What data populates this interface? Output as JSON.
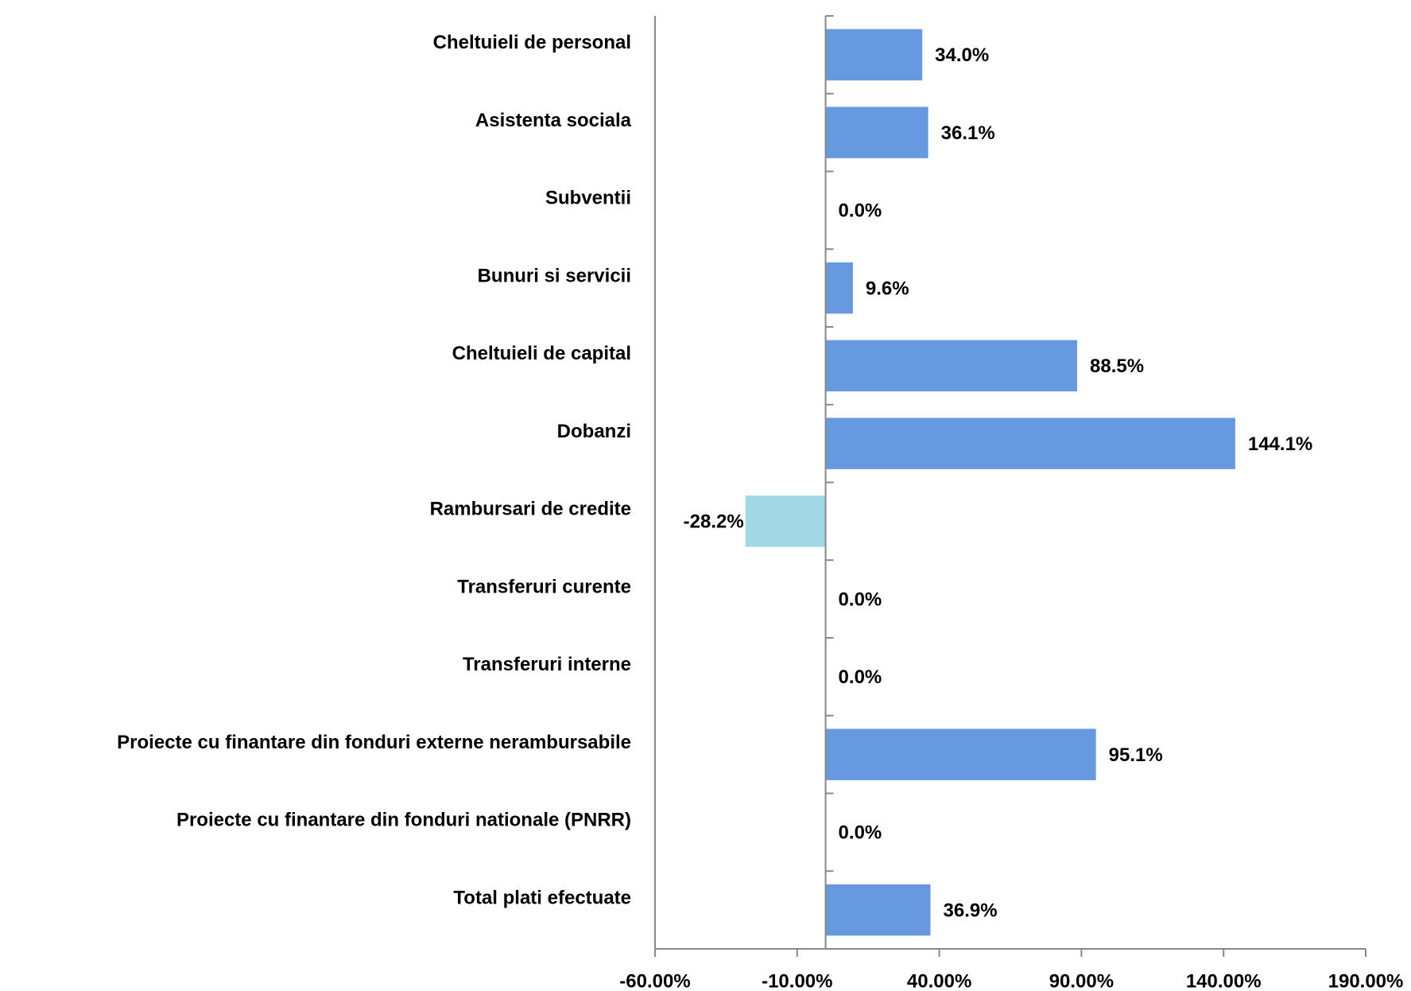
{
  "chart_data": {
    "type": "hbar",
    "categories": [
      "Cheltuieli de personal",
      "Asistenta sociala",
      "Subventii",
      "Bunuri si servicii",
      "Cheltuieli de capital",
      "Dobanzi",
      "Rambursari de credite",
      "Transferuri curente",
      "Transferuri interne",
      "Proiecte cu finantare din fonduri externe nerambursabile",
      "Proiecte cu finantare din fonduri nationale (PNRR)",
      "Total plati efectuate"
    ],
    "values": [
      34.0,
      36.1,
      0.0,
      9.6,
      88.5,
      144.1,
      -28.2,
      0.0,
      0.0,
      95.1,
      0.0,
      36.9
    ],
    "value_labels": [
      "34.0%",
      "36.1%",
      "0.0%",
      "9.6%",
      "88.5%",
      "144.1%",
      "-28.2%",
      "0.0%",
      "0.0%",
      "95.1%",
      "0.0%",
      "36.9%"
    ],
    "color": "#6699e0",
    "negative_color": "#a2d7e6",
    "xlim": [
      -60,
      190
    ],
    "xticks": [
      {
        "value": -60,
        "label": "-60.00%"
      },
      {
        "value": -10,
        "label": "-10.00%"
      },
      {
        "value": 40,
        "label": "40.00%"
      },
      {
        "value": 90,
        "label": "90.00%"
      },
      {
        "value": 140,
        "label": "140.00%"
      },
      {
        "value": 190,
        "label": "190.00%"
      }
    ],
    "grid": false
  }
}
